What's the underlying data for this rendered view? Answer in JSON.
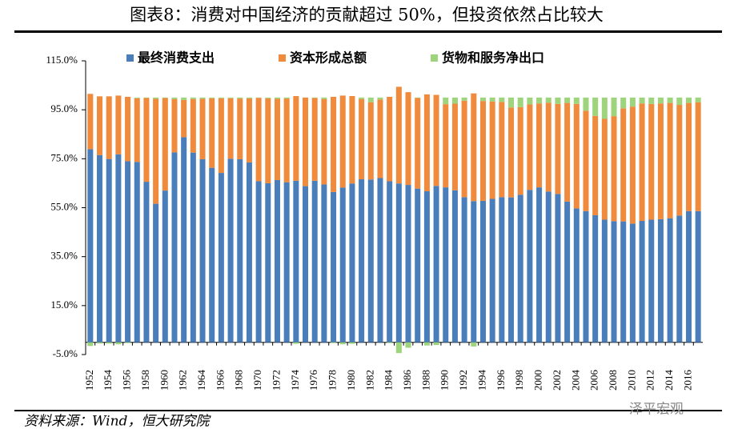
{
  "chart_data": {
    "type": "stacked_bar",
    "title": "图表8：消费对中国经济的贡献超过 50%，但投资依然占比较大",
    "source": "资料来源：Wind，恒大研究院",
    "watermark": "泽平宏观",
    "categories": [
      "1952",
      null,
      "1954",
      null,
      "1956",
      null,
      "1958",
      null,
      "1960",
      null,
      "1962",
      null,
      "1964",
      null,
      "1966",
      null,
      "1968",
      null,
      "1970",
      null,
      "1972",
      null,
      "1974",
      null,
      "1976",
      null,
      "1978",
      null,
      "1980",
      null,
      "1982",
      null,
      "1984",
      null,
      "1986",
      null,
      "1988",
      null,
      "1990",
      null,
      "1992",
      null,
      "1994",
      null,
      "1996",
      null,
      "1998",
      null,
      "2000",
      null,
      "2002",
      null,
      "2004",
      null,
      "2006",
      null,
      "2008",
      null,
      "2010",
      null,
      "2012",
      null,
      "2014",
      null,
      "2016",
      null
    ],
    "series": [
      {
        "name": "最终消费支出",
        "color": "#4a7ebb",
        "values": [
          78.9,
          76.5,
          74.9,
          76.8,
          74.0,
          73.7,
          65.6,
          56.6,
          62.0,
          77.6,
          83.8,
          77.5,
          74.8,
          71.3,
          69.2,
          75.0,
          74.8,
          73.5,
          65.8,
          65.0,
          66.3,
          65.4,
          66.0,
          63.8,
          66.0,
          64.5,
          61.4,
          63.2,
          64.9,
          66.6,
          66.5,
          67.1,
          65.8,
          64.9,
          64.3,
          62.8,
          61.7,
          63.9,
          63.3,
          62.1,
          59.3,
          57.7,
          57.8,
          58.6,
          59.3,
          59.2,
          60.3,
          62.3,
          63.3,
          61.6,
          60.6,
          57.5,
          54.7,
          53.6,
          51.9,
          50.1,
          49.5,
          49.4,
          48.5,
          49.6,
          50.1,
          50.3,
          50.7,
          51.8,
          53.6,
          53.6
        ]
      },
      {
        "name": "资本形成总额",
        "color": "#f08a3c",
        "values": [
          22.6,
          24.0,
          25.6,
          24.0,
          26.3,
          26.0,
          34.2,
          42.9,
          37.8,
          21.8,
          15.2,
          21.9,
          24.7,
          28.4,
          30.5,
          24.7,
          24.8,
          26.2,
          34.1,
          34.7,
          33.2,
          34.2,
          34.6,
          36.2,
          33.8,
          34.9,
          38.9,
          37.6,
          35.7,
          32.8,
          31.6,
          32.1,
          34.5,
          39.5,
          37.9,
          37.0,
          39.6,
          37.2,
          34.0,
          35.4,
          39.4,
          44.0,
          40.8,
          39.8,
          38.9,
          36.7,
          35.8,
          34.9,
          34.3,
          36.3,
          36.8,
          40.3,
          42.7,
          41.0,
          40.6,
          41.2,
          42.9,
          46.2,
          47.8,
          48.0,
          47.3,
          47.3,
          47.1,
          45.2,
          44.2,
          44.5
        ]
      },
      {
        "name": "货物和服务净出口",
        "color": "#9dd47c",
        "values": [
          -1.5,
          -0.5,
          -0.5,
          -0.8,
          -0.3,
          0.3,
          0.2,
          0.5,
          0.2,
          0.6,
          1.0,
          0.6,
          0.5,
          0.3,
          0.3,
          0.3,
          0.4,
          0.3,
          0.1,
          0.3,
          0.5,
          0.4,
          -0.6,
          0.0,
          0.2,
          0.6,
          -0.3,
          -0.8,
          -0.6,
          0.6,
          1.9,
          0.8,
          -0.3,
          -4.4,
          -2.2,
          0.2,
          -1.3,
          -1.1,
          2.7,
          2.5,
          1.3,
          -1.7,
          1.4,
          1.6,
          1.8,
          4.1,
          3.9,
          2.8,
          2.4,
          2.1,
          2.6,
          2.2,
          2.6,
          5.4,
          7.5,
          8.7,
          7.6,
          4.4,
          3.7,
          2.4,
          2.6,
          2.4,
          2.2,
          3.0,
          2.2,
          1.9
        ]
      }
    ],
    "ylim": [
      -5,
      115
    ],
    "yticks": [
      {
        "value": -5,
        "label": "-5.0%"
      },
      {
        "value": 15,
        "label": "15.0%"
      },
      {
        "value": 35,
        "label": "35.0%"
      },
      {
        "value": 55,
        "label": "55.0%"
      },
      {
        "value": 75,
        "label": "75.0%"
      },
      {
        "value": 95,
        "label": "95.0%"
      },
      {
        "value": 115,
        "label": "115.0%"
      }
    ],
    "grid": false
  }
}
